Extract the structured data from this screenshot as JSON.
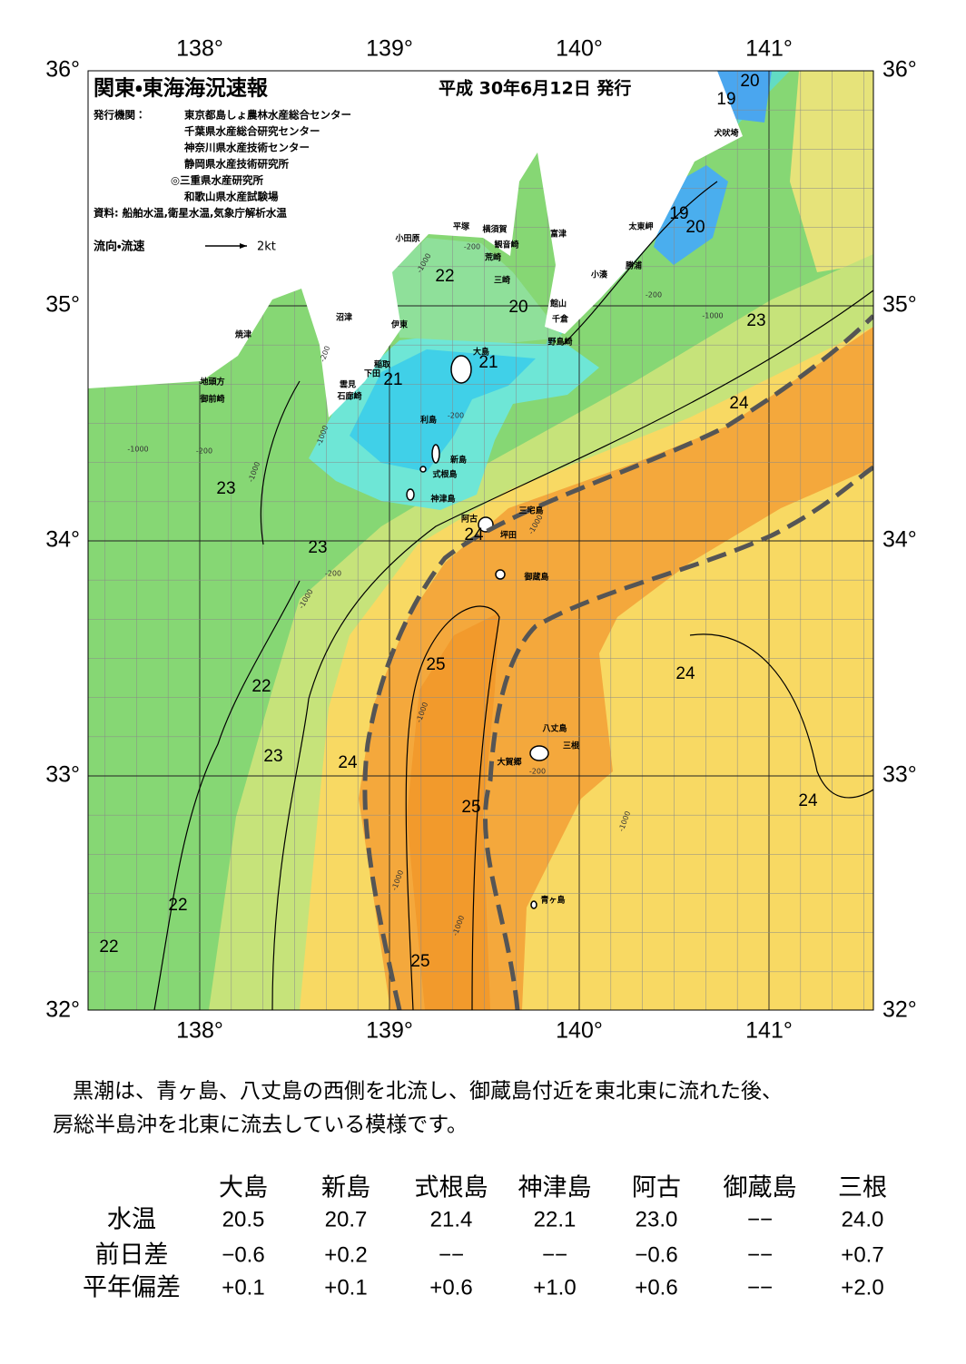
{
  "header": {
    "title": "関東・東海海況速報",
    "date": "平成 30年6月12日 発行",
    "issuer_label": "発行機関：",
    "issuers": [
      "東京都島しょ農林水産総合センター",
      "千葉県水産総合研究センター",
      "神奈川県水産技術センター",
      "静岡県水産技術研究所",
      "◎三重県水産研究所",
      "和歌山県水産試験場"
    ],
    "sources": "資料: 船舶水温,衛星水温,気象庁解析水温",
    "legend_label": "流向・流速",
    "legend_scale": "2kt"
  },
  "map": {
    "lon_labels": [
      "138°",
      "139°",
      "140°",
      "141°"
    ],
    "lat_labels": [
      "36°",
      "35°",
      "34°",
      "33°",
      "32°"
    ],
    "places": [
      "犬吠埼",
      "太東岬",
      "富津",
      "勝浦",
      "小湊",
      "館山",
      "千倉",
      "野島崎",
      "横須賀",
      "観音崎",
      "荒崎",
      "三崎",
      "平塚",
      "小田原",
      "沼津",
      "伊東",
      "焼津",
      "稲取",
      "下田",
      "雲見",
      "石廊崎",
      "地頭方",
      "御前崎",
      "大島",
      "利島",
      "新島",
      "式根島",
      "神津島",
      "三宅島",
      "阿古",
      "坪田",
      "御蔵島",
      "八丈島",
      "三根",
      "大賀郷",
      "青ヶ島"
    ],
    "temperatures": [
      20,
      19,
      19,
      20,
      22,
      20,
      23,
      21,
      21,
      24,
      23,
      24,
      23,
      25,
      24,
      22,
      23,
      24,
      25,
      24,
      22,
      22,
      25
    ],
    "depths": [
      -1000,
      -200,
      -200,
      -1000,
      -200,
      -1000,
      -200,
      -1000,
      -200,
      -1000,
      -1000,
      -200,
      -1000,
      -1000,
      -200,
      -1000,
      -1000,
      -1000
    ]
  },
  "description": [
    "黒潮は、青ヶ島、八丈島の西側を北流し、御蔵島付近を東北東に流れた後、",
    "房総半島沖を北東に流去している模様です。"
  ],
  "table": {
    "columns": [
      "大島",
      "新島",
      "式根島",
      "神津島",
      "阿古",
      "御蔵島",
      "三根"
    ],
    "rows": [
      {
        "label": "水温",
        "values": [
          "20.5",
          "20.7",
          "21.4",
          "22.1",
          "23.0",
          "−−",
          "24.0"
        ]
      },
      {
        "label": "前日差",
        "values": [
          "−0.6",
          "+0.2",
          "−−",
          "−−",
          "−0.6",
          "−−",
          "+0.7"
        ]
      },
      {
        "label": "平年偏差",
        "values": [
          "+0.1",
          "+0.1",
          "+0.6",
          "+1.0",
          "+0.6",
          "−−",
          "+2.0"
        ]
      }
    ]
  }
}
